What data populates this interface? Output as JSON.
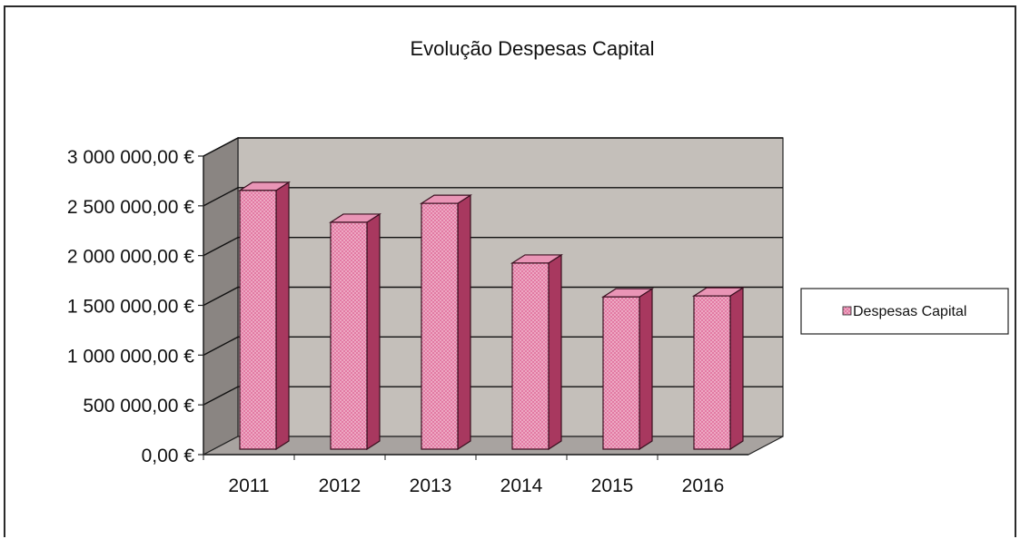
{
  "chart_data": {
    "type": "bar",
    "title": "Evolução Despesas Capital",
    "xlabel": "",
    "ylabel": "",
    "categories": [
      "2011",
      "2012",
      "2013",
      "2014",
      "2015",
      "2016"
    ],
    "series": [
      {
        "name": "Despesas Capital",
        "values": [
          2600000,
          2280000,
          2470000,
          1870000,
          1530000,
          1540000
        ]
      }
    ],
    "ylim": [
      0,
      3000000
    ],
    "yticks": [
      0,
      500000,
      1000000,
      1500000,
      2000000,
      2500000,
      3000000
    ],
    "ytick_labels": [
      "0,00 €",
      "500 000,00 €",
      "1 000 000,00 €",
      "1 500 000,00 €",
      "2 000 000,00 €",
      "2 500 000,00 €",
      "3 000 000,00 €"
    ],
    "grid": true,
    "legend_position": "right",
    "style": "3d-column",
    "colors": {
      "bar_front": "#e0709c",
      "bar_top": "#e995b6",
      "bar_side": "#a8385f",
      "bar_edge": "#3a1020",
      "back_wall": "#c4bfba",
      "side_wall": "#8a8582",
      "floor": "#a8a3a0",
      "gridline": "#111111"
    }
  }
}
